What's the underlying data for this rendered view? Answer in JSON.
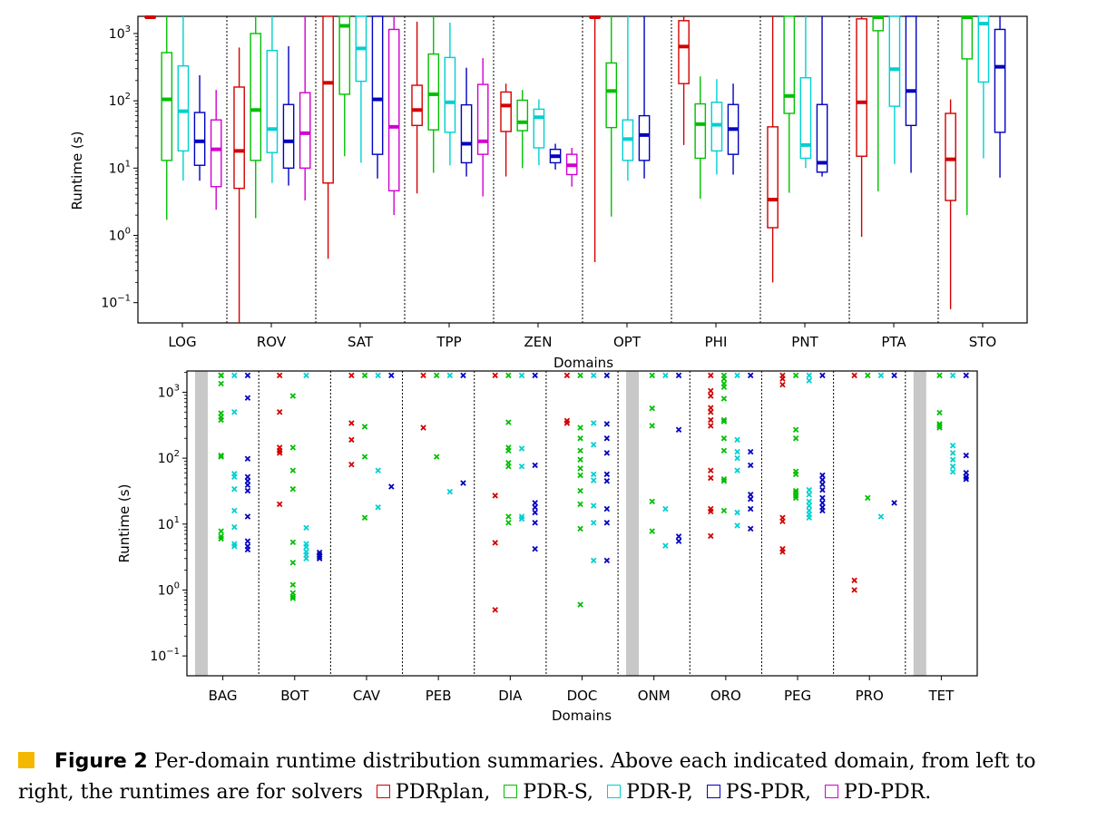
{
  "chart_data": [
    {
      "type": "boxplot",
      "xlabel": "Domains",
      "ylabel": "Runtime (s)",
      "yscale": "log",
      "ylim": [
        0.05,
        1800
      ],
      "yticks": [
        {
          "v": 0.1,
          "b": "10",
          "e": "−1"
        },
        {
          "v": 1,
          "b": "10",
          "e": "0"
        },
        {
          "v": 10,
          "b": "10",
          "e": "1"
        },
        {
          "v": 100,
          "b": "10",
          "e": "2"
        },
        {
          "v": 1000,
          "b": "10",
          "e": "3"
        }
      ],
      "domains": [
        "LOG",
        "ROV",
        "SAT",
        "TPP",
        "ZEN",
        "OPT",
        "PHI",
        "PNT",
        "PTA",
        "STO"
      ],
      "series_colors": [
        "#d40000",
        "#00c000",
        "#00d0d0",
        "#0000c0",
        "#d000d0"
      ],
      "boxes": [
        [
          [
            1800,
            1800,
            1800,
            1800,
            1800
          ],
          [
            1.7,
            13,
            105,
            520,
            1800
          ],
          [
            6.5,
            18,
            70,
            330,
            1800
          ],
          [
            6.5,
            11,
            25,
            67,
            240
          ],
          [
            2.4,
            5.3,
            19,
            52,
            145
          ]
        ],
        [
          [
            0.04,
            5,
            18,
            160,
            620
          ],
          [
            1.8,
            13,
            73,
            1000,
            1800
          ],
          [
            6,
            17,
            38,
            560,
            1800
          ],
          [
            5.5,
            10,
            25,
            88,
            650
          ],
          [
            3.3,
            10,
            33,
            132,
            1800
          ]
        ],
        [
          [
            0.45,
            6,
            185,
            1800,
            1800
          ],
          [
            15,
            125,
            1300,
            1800,
            1800
          ],
          [
            12,
            195,
            600,
            1800,
            1800
          ],
          [
            7,
            16,
            105,
            1800,
            1800
          ],
          [
            2,
            4.6,
            41,
            1150,
            1800
          ]
        ],
        [
          [
            4.2,
            43,
            73,
            170,
            1500
          ],
          [
            8.5,
            37,
            125,
            495,
            1800
          ],
          [
            11,
            34,
            95,
            440,
            1450
          ],
          [
            7.5,
            12,
            23,
            87,
            310
          ],
          [
            3.8,
            16,
            25,
            175,
            430
          ]
        ],
        [
          [
            7.5,
            35,
            85,
            135,
            180
          ],
          [
            10,
            36,
            48,
            102,
            145
          ],
          [
            11,
            20,
            57,
            75,
            105
          ],
          [
            9.5,
            12,
            15,
            19,
            23
          ],
          [
            5.3,
            8,
            11,
            16,
            20
          ]
        ],
        [
          [
            0.4,
            1800,
            1800,
            1800,
            1800
          ],
          [
            1.9,
            40,
            140,
            365,
            1800
          ],
          [
            6.5,
            13,
            27,
            52,
            1800
          ],
          [
            7,
            13,
            31,
            60,
            1800
          ]
        ],
        [
          [
            22,
            180,
            640,
            1550,
            1800
          ],
          [
            3.5,
            14,
            45,
            90,
            230
          ],
          [
            8,
            18,
            44,
            95,
            210
          ],
          [
            8,
            16,
            38,
            88,
            180
          ]
        ],
        [
          [
            0.2,
            1.3,
            3.4,
            41,
            1800
          ],
          [
            4.3,
            65,
            118,
            1800,
            1800
          ],
          [
            10,
            14,
            22,
            220,
            1800
          ],
          [
            7.5,
            8.7,
            12,
            88,
            1800
          ]
        ],
        [
          [
            0.95,
            15,
            95,
            1650,
            1800
          ],
          [
            4.5,
            1100,
            1800,
            1800,
            1800
          ],
          [
            11.5,
            83,
            295,
            1800,
            1800
          ],
          [
            8.5,
            43,
            140,
            1800,
            1800
          ]
        ],
        [
          [
            0.08,
            3.3,
            13.5,
            65,
            105
          ],
          [
            2,
            420,
            1800,
            1800,
            1800
          ],
          [
            14,
            190,
            1400,
            1800,
            1800
          ],
          [
            7.2,
            34,
            320,
            1150,
            1800
          ]
        ]
      ]
    },
    {
      "type": "scatter",
      "xlabel": "Domains",
      "ylabel": "Runtime (s)",
      "yscale": "log",
      "ylim": [
        0.05,
        2100
      ],
      "yticks": [
        {
          "v": 0.1,
          "b": "10",
          "e": "−1"
        },
        {
          "v": 1,
          "b": "10",
          "e": "0"
        },
        {
          "v": 10,
          "b": "10",
          "e": "1"
        },
        {
          "v": 100,
          "b": "10",
          "e": "2"
        },
        {
          "v": 1000,
          "b": "10",
          "e": "3"
        }
      ],
      "domains": [
        "BAG",
        "BOT",
        "CAV",
        "PEB",
        "DIA",
        "DOC",
        "ONM",
        "ORO",
        "PEG",
        "PRO",
        "TET"
      ],
      "series_colors": [
        "#d40000",
        "#00c000",
        "#00d0d0",
        "#0000c0"
      ],
      "points": [
        [
          [],
          [
            1800,
            1800,
            1800,
            1350,
            480,
            420,
            380,
            110,
            105,
            7.8,
            6.5,
            6
          ],
          [
            1800,
            500,
            58,
            52,
            34,
            16,
            9,
            5,
            4.6
          ],
          [
            1800,
            820,
            98,
            52,
            45,
            39,
            32,
            13,
            5.5,
            4.6,
            4.1
          ]
        ],
        [
          [
            1800,
            500,
            145,
            130,
            120,
            20
          ],
          [
            880,
            145,
            65,
            34,
            5.3,
            2.6,
            1.2,
            0.9,
            0.8,
            0.75
          ],
          [
            1800,
            8.8,
            5,
            4.5,
            3.8,
            3.4,
            3
          ],
          [
            3.7,
            3.4,
            3.2,
            3.0
          ]
        ],
        [
          [
            1800,
            340,
            190,
            80
          ],
          [
            1800,
            300,
            105,
            12.5
          ],
          [
            1800,
            65,
            18
          ],
          [
            1800,
            37
          ]
        ],
        [
          [
            1800,
            290
          ],
          [
            1800,
            105
          ],
          [
            1800,
            31
          ],
          [
            1800,
            42
          ]
        ],
        [
          [
            1800,
            27,
            5.2,
            0.5
          ],
          [
            1800,
            350,
            145,
            130,
            85,
            75,
            13,
            10.5
          ],
          [
            1800,
            140,
            75,
            13,
            12
          ],
          [
            1800,
            78,
            21,
            18,
            15,
            10.5,
            4.2
          ]
        ],
        [
          [
            1800,
            370,
            340
          ],
          [
            1800,
            290,
            200,
            130,
            95,
            70,
            55,
            32,
            20,
            8.5,
            0.6
          ],
          [
            1800,
            340,
            160,
            57,
            46,
            19,
            10.5,
            2.8
          ],
          [
            1800,
            330,
            200,
            120,
            57,
            45,
            17,
            10.5,
            2.8
          ]
        ],
        [
          [],
          [
            1800,
            570,
            310,
            22,
            7.8
          ],
          [
            1800,
            17,
            4.7
          ],
          [
            1800,
            270,
            6.5,
            5.5
          ]
        ],
        [
          [
            1800,
            1050,
            880,
            580,
            500,
            380,
            310,
            65,
            50,
            17,
            15.5,
            6.6
          ],
          [
            1800,
            1600,
            1350,
            1200,
            800,
            380,
            360,
            200,
            130,
            48,
            45,
            16
          ],
          [
            1800,
            190,
            125,
            100,
            65,
            15,
            9.5
          ],
          [
            1800,
            125,
            78,
            28,
            24,
            17,
            8.5
          ]
        ],
        [
          [
            1800,
            1600,
            1300,
            12.5,
            11,
            4.2,
            3.8
          ],
          [
            1800,
            270,
            200,
            63,
            57,
            32,
            30,
            27,
            25
          ],
          [
            1800,
            1500,
            33,
            28,
            22,
            19,
            16,
            14,
            12.5
          ],
          [
            1800,
            55,
            47,
            40,
            33,
            25,
            21,
            18,
            16
          ]
        ],
        [
          [
            1800,
            1.4,
            1.0
          ],
          [
            1800,
            25
          ],
          [
            1800,
            13
          ],
          [
            1800,
            21
          ]
        ],
        [
          [],
          [
            1800,
            490,
            330,
            310,
            290
          ],
          [
            1800,
            155,
            120,
            95,
            75,
            62
          ],
          [
            1800,
            110,
            60,
            52,
            48
          ]
        ]
      ],
      "gray_bands_before": [
        "BAG",
        "ONM",
        "TET"
      ]
    }
  ],
  "caption": {
    "label": "Figure 2",
    "text": "Per-domain runtime distribution summaries. Above each indicated domain, from left to right, the runtimes are for solvers",
    "solvers": [
      "PDRplan,",
      "PDR-S,",
      "PDR-P,",
      "PS-PDR,",
      "PD-PDR."
    ]
  }
}
